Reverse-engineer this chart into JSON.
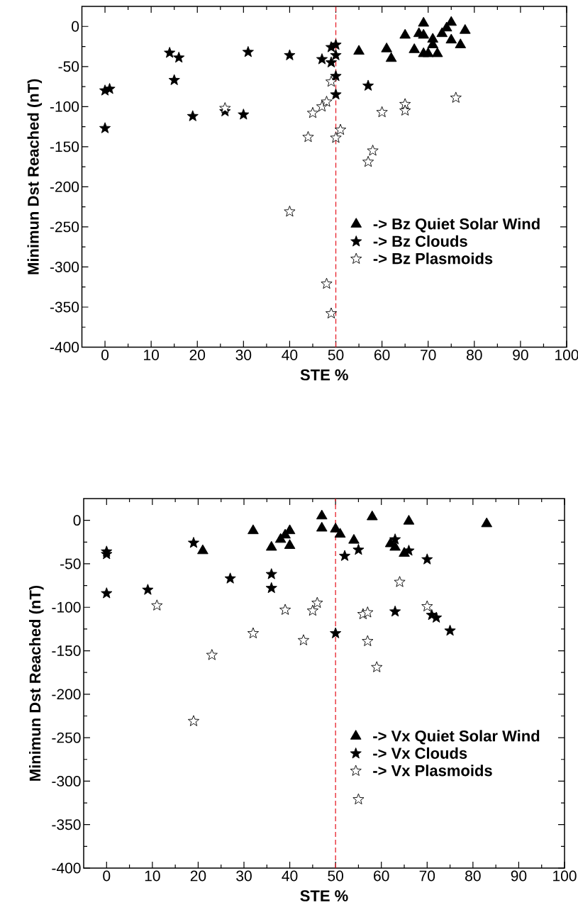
{
  "chart_data": [
    {
      "type": "scatter",
      "xlabel": "STE %",
      "ylabel": "Minimun Dst Reached (nT)",
      "xlim": [
        -5,
        100
      ],
      "ylim": [
        -400,
        25
      ],
      "xticks": [
        0,
        10,
        20,
        30,
        40,
        50,
        60,
        70,
        80,
        90,
        100
      ],
      "yticks": [
        -400,
        -350,
        -300,
        -250,
        -200,
        -150,
        -100,
        -50,
        0
      ],
      "legend": "right",
      "ref_lines": [
        {
          "axis": "x",
          "value": 50,
          "color": "#e8202a",
          "line_style": "dashed"
        }
      ],
      "series": [
        {
          "name": "-> Bz Quiet Solar Wind",
          "color": "#000000",
          "marker": "triangle",
          "x": [
            55,
            61,
            62,
            65,
            67,
            68,
            69,
            69,
            69,
            70,
            71,
            71,
            72,
            73,
            74,
            75,
            75,
            77,
            78
          ],
          "values": [
            -31,
            -28,
            -40,
            -11,
            -29,
            -9,
            4,
            -11,
            -34,
            -34,
            -16,
            -23,
            -34,
            -9,
            -2,
            5,
            -17,
            -23,
            -5
          ]
        },
        {
          "name": "-> Bz Clouds",
          "color": "#000000",
          "marker": "star",
          "x": [
            0,
            1,
            0,
            14,
            15,
            16,
            19,
            26,
            30,
            31,
            40,
            47,
            49,
            49,
            50,
            50,
            50,
            50,
            57
          ],
          "values": [
            -80,
            -78,
            -127,
            -33,
            -67,
            -39,
            -112,
            -106,
            -110,
            -32,
            -36,
            -41,
            -26,
            -45,
            -23,
            -36,
            -62,
            -85,
            -74
          ]
        },
        {
          "name": "-> Bz Plasmoids",
          "color": "#ffffff",
          "marker": "star",
          "x": [
            26,
            40,
            44,
            45,
            47,
            48,
            49,
            48,
            49,
            50,
            51,
            57,
            58,
            60,
            65,
            65,
            76
          ],
          "values": [
            -102,
            -231,
            -138,
            -108,
            -100,
            -94,
            -69,
            -321,
            -358,
            -139,
            -129,
            -169,
            -155,
            -107,
            -97,
            -105,
            -89
          ]
        }
      ]
    },
    {
      "type": "scatter",
      "xlabel": "STE %",
      "ylabel": "Minimun Dst Reached (nT)",
      "xlim": [
        -5,
        100
      ],
      "ylim": [
        -400,
        25
      ],
      "xticks": [
        0,
        10,
        20,
        30,
        40,
        50,
        60,
        70,
        80,
        90,
        100
      ],
      "yticks": [
        -400,
        -350,
        -300,
        -250,
        -200,
        -150,
        -100,
        -50,
        0
      ],
      "legend": "right",
      "ref_lines": [
        {
          "axis": "x",
          "value": 50,
          "color": "#e8202a",
          "line_style": "dashed"
        }
      ],
      "series": [
        {
          "name": "-> Vx Quiet Solar Wind",
          "color": "#000000",
          "marker": "triangle",
          "x": [
            21,
            32,
            36,
            38,
            39,
            40,
            40,
            47,
            47,
            50,
            51,
            54,
            58,
            62,
            63,
            65,
            66,
            83
          ],
          "values": [
            -35,
            -12,
            -31,
            -22,
            -17,
            -12,
            -29,
            5,
            -9,
            -10,
            -16,
            -23,
            4,
            -27,
            -31,
            -38,
            -1,
            -4
          ]
        },
        {
          "name": "-> Vx Clouds",
          "color": "#000000",
          "marker": "star",
          "x": [
            0,
            0,
            0,
            9,
            19,
            27,
            36,
            36,
            50,
            52,
            55,
            63,
            66,
            70,
            63,
            71,
            72,
            75
          ],
          "values": [
            -36,
            -39,
            -84,
            -80,
            -26,
            -67,
            -62,
            -78,
            -130,
            -41,
            -34,
            -22,
            -35,
            -45,
            -105,
            -109,
            -112,
            -127
          ]
        },
        {
          "name": "-> Vx Plasmoids",
          "color": "#ffffff",
          "marker": "star",
          "x": [
            11,
            19,
            23,
            32,
            39,
            43,
            45,
            46,
            55,
            56,
            57,
            57,
            59,
            64,
            70
          ],
          "values": [
            -98,
            -231,
            -155,
            -130,
            -103,
            -138,
            -104,
            -95,
            -321,
            -108,
            -106,
            -139,
            -169,
            -71,
            -99
          ]
        }
      ]
    }
  ]
}
